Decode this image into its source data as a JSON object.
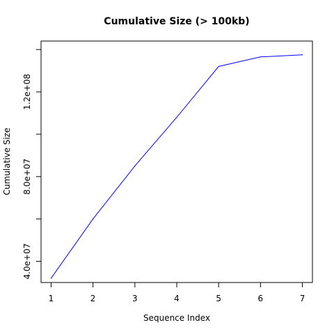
{
  "chart_data": {
    "type": "line",
    "title": "Cumulative Size (> 100kb)",
    "xlabel": "Sequence Index",
    "ylabel": "Cumulative Size",
    "x": [
      1,
      2,
      3,
      4,
      5,
      6,
      7
    ],
    "y": [
      32000000,
      60000000,
      85000000,
      108000000,
      132000000,
      136500000,
      137500000
    ],
    "xlim": [
      0.76,
      7.24
    ],
    "ylim": [
      30000000,
      144000000
    ],
    "xticks": [
      1,
      2,
      3,
      4,
      5,
      6,
      7
    ],
    "xtick_labels": [
      "1",
      "2",
      "3",
      "4",
      "5",
      "6",
      "7"
    ],
    "yticks": [
      40000000,
      60000000,
      80000000,
      100000000,
      120000000,
      140000000
    ],
    "yticks_labeled": [
      40000000,
      80000000,
      120000000
    ],
    "ytick_labels": [
      "4.0e+07",
      "8.0e+07",
      "1.2e+08"
    ],
    "line_color": "#0000ff",
    "grid": false,
    "legend": "none"
  }
}
